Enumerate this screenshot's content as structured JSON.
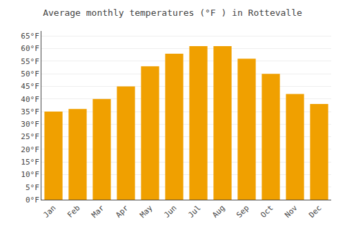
{
  "chart_data": {
    "type": "bar",
    "title": "Average monthly temperatures (°F ) in Rottevalle",
    "categories": [
      "Jan",
      "Feb",
      "Mar",
      "Apr",
      "May",
      "Jun",
      "Jul",
      "Aug",
      "Sep",
      "Oct",
      "Nov",
      "Dec"
    ],
    "values": [
      35,
      36,
      40,
      45,
      53,
      58,
      61,
      61,
      56,
      50,
      42,
      38
    ],
    "color": "#F0A000",
    "ylim": [
      0,
      67
    ],
    "yticks": [
      {
        "value": 0,
        "label": "0°F"
      },
      {
        "value": 5,
        "label": "5°F"
      },
      {
        "value": 10,
        "label": "10°F"
      },
      {
        "value": 15,
        "label": "15°F"
      },
      {
        "value": 20,
        "label": "20°F"
      },
      {
        "value": 25,
        "label": "25°F"
      },
      {
        "value": 30,
        "label": "30°F"
      },
      {
        "value": 35,
        "label": "35°F"
      },
      {
        "value": 40,
        "label": "40°F"
      },
      {
        "value": 45,
        "label": "45°F"
      },
      {
        "value": 50,
        "label": "50°F"
      },
      {
        "value": 55,
        "label": "55°F"
      },
      {
        "value": 60,
        "label": "60°F"
      },
      {
        "value": 65,
        "label": "65°F"
      }
    ],
    "grid": true
  }
}
